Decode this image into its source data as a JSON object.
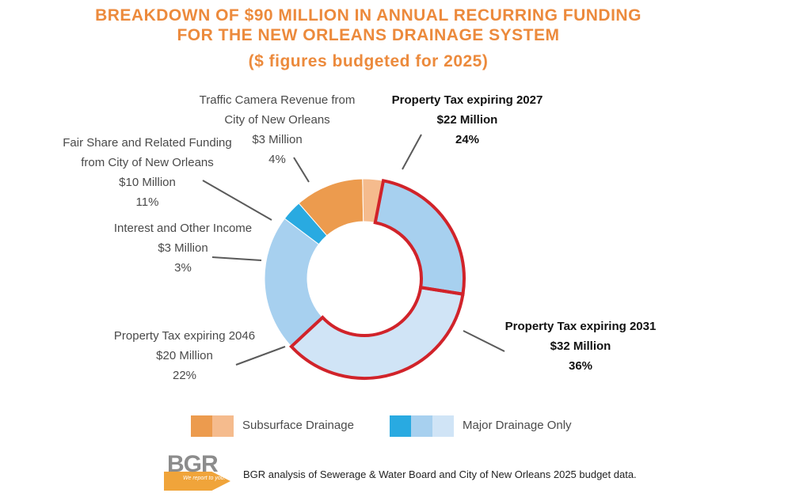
{
  "chart_data": {
    "type": "donut",
    "title": "BREAKDOWN OF $90 MILLION IN ANNUAL RECURRING FUNDING",
    "title_line2": "FOR THE NEW ORLEANS DRAINAGE SYSTEM",
    "subtitle": "($ figures budgeted for 2025)",
    "total_millions": 90,
    "slices": [
      {
        "name": "Property Tax expiring 2027",
        "amount": "$22 Million",
        "value": 22,
        "percent": "24%",
        "category": "major",
        "highlight": true,
        "bold": true,
        "color": "#a7d0ef"
      },
      {
        "name": "Property Tax expiring 2031",
        "amount": "$32 Million",
        "value": 32,
        "percent": "36%",
        "category": "major",
        "highlight": true,
        "bold": true,
        "color": "#d0e4f6"
      },
      {
        "name": "Property Tax expiring 2046",
        "amount": "$20 Million",
        "value": 20,
        "percent": "22%",
        "category": "major",
        "highlight": false,
        "bold": false,
        "color": "#a7d0ef"
      },
      {
        "name": "Interest and Other Income",
        "amount": "$3 Million",
        "value": 3,
        "percent": "3%",
        "category": "major",
        "highlight": false,
        "bold": false,
        "color": "#29aae1"
      },
      {
        "name_lines": [
          "Fair Share and Related Funding",
          "from City of New Orleans"
        ],
        "amount": "$10 Million",
        "value": 10,
        "percent": "11%",
        "category": "subsurface",
        "highlight": false,
        "bold": false,
        "color": "#ec9b4e"
      },
      {
        "name_lines": [
          "Traffic Camera Revenue from",
          "City of New Orleans"
        ],
        "amount": "$3 Million",
        "value": 3,
        "percent": "4%",
        "category": "subsurface",
        "highlight": false,
        "bold": false,
        "color": "#f5bb8d"
      }
    ],
    "legend": [
      {
        "label": "Subsurface Drainage",
        "colors": [
          "#ec9b4e",
          "#f5bb8d"
        ]
      },
      {
        "label": "Major Drainage Only",
        "colors": [
          "#29aae1",
          "#a7d0ef",
          "#d0e4f6"
        ]
      }
    ],
    "highlight_color": "#d1232a"
  },
  "logo": {
    "text": "BGR",
    "tagline": "We report to you."
  },
  "source": "BGR analysis of Sewerage & Water Board and City of New Orleans 2025 budget data."
}
